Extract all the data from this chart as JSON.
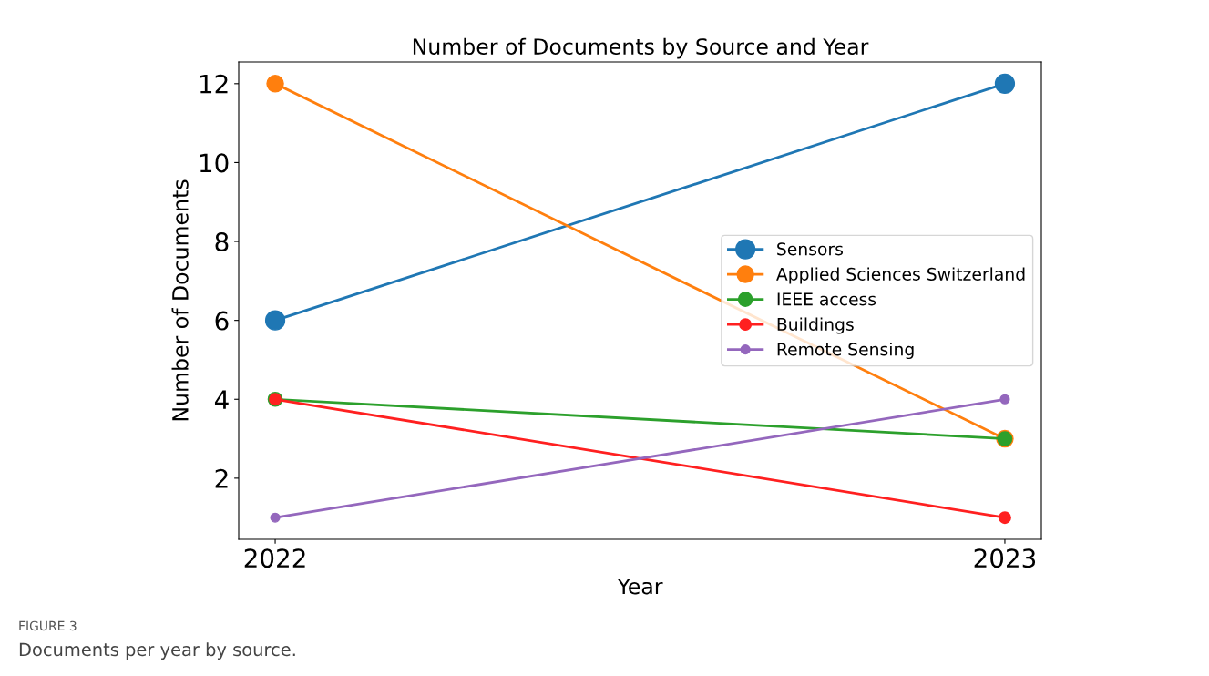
{
  "chart_data": {
    "type": "line",
    "title": "Number of Documents by Source and Year",
    "xlabel": "Year",
    "ylabel": "Number of Documents",
    "x": [
      2022,
      2023
    ],
    "series": [
      {
        "name": "Sensors",
        "color": "#1f77b4",
        "values": [
          6,
          12
        ]
      },
      {
        "name": "Applied Sciences Switzerland",
        "color": "#ff7f0e",
        "values": [
          12,
          3
        ]
      },
      {
        "name": "IEEE access",
        "color": "#2ca02c",
        "values": [
          4,
          3
        ]
      },
      {
        "name": "Buildings",
        "color": "#ff2020",
        "values": [
          4,
          1
        ]
      },
      {
        "name": "Remote Sensing",
        "color": "#9467bd",
        "values": [
          1,
          4
        ]
      }
    ],
    "xlim": [
      2021.95,
      2023.05
    ],
    "xticks": [
      2022,
      2023
    ],
    "ylim": [
      0.45,
      12.55
    ],
    "yticks": [
      2,
      4,
      6,
      8,
      10,
      12
    ],
    "legend": "right",
    "marker": "circle",
    "line_style": "solid",
    "grid": false,
    "annotations": [
      "FIGURE 3",
      "Documents per year by source."
    ]
  }
}
